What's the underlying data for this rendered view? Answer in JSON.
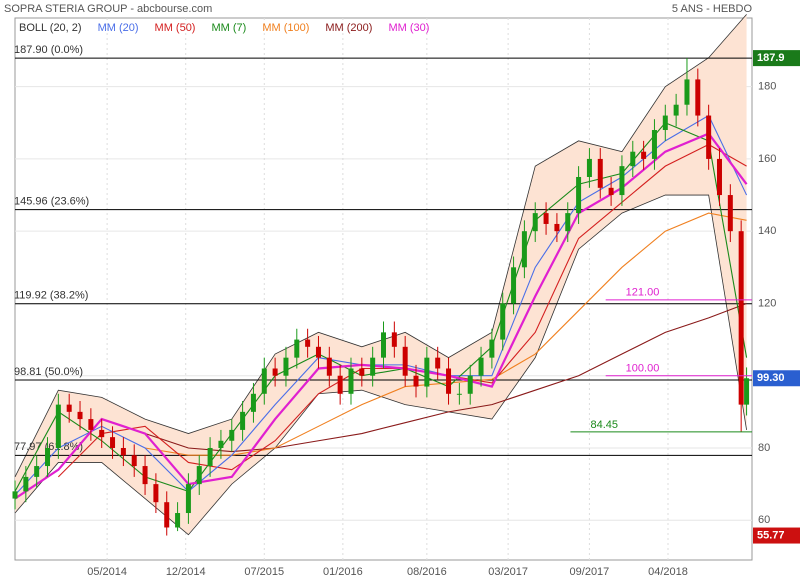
{
  "chart_data": {
    "type": "candlestick",
    "title": "SOPRA STERIA GROUP - abcbourse.com",
    "period": "5 ANS - HEBDO",
    "legend": [
      {
        "name": "BOLL (20, 2)",
        "color": "#333333"
      },
      {
        "name": "MM (20)",
        "color": "#4a6ee8"
      },
      {
        "name": "MM (50)",
        "color": "#d42020"
      },
      {
        "name": "MM (7)",
        "color": "#1a8a1a"
      },
      {
        "name": "MM (100)",
        "color": "#f08020"
      },
      {
        "name": "MM (200)",
        "color": "#8a1a1a"
      },
      {
        "name": "MM (30)",
        "color": "#e020d0"
      }
    ],
    "xlim": [
      0,
      272
    ],
    "xticks": [
      {
        "value": 34,
        "label": "05/2014"
      },
      {
        "value": 63,
        "label": "12/2014"
      },
      {
        "value": 92,
        "label": "07/2015"
      },
      {
        "value": 121,
        "label": "01/2016"
      },
      {
        "value": 152,
        "label": "08/2016"
      },
      {
        "value": 182,
        "label": "03/2017"
      },
      {
        "value": 212,
        "label": "09/2017"
      },
      {
        "value": 241,
        "label": "04/2018"
      }
    ],
    "ylim": [
      49,
      199
    ],
    "yticks": [
      60,
      80,
      100,
      120,
      140,
      160,
      180
    ],
    "grid": true,
    "candles": {
      "up_color": "#1a9a1a",
      "down_color": "#cc0000",
      "x": [
        0,
        4,
        8,
        12,
        16,
        20,
        24,
        28,
        32,
        36,
        40,
        44,
        48,
        52,
        56,
        60,
        64,
        68,
        72,
        76,
        80,
        84,
        88,
        92,
        96,
        100,
        104,
        108,
        112,
        116,
        120,
        124,
        128,
        132,
        136,
        140,
        144,
        148,
        152,
        156,
        160,
        164,
        168,
        172,
        176,
        180,
        184,
        188,
        192,
        196,
        200,
        204,
        208,
        212,
        216,
        220,
        224,
        228,
        232,
        236,
        240,
        244,
        248,
        252,
        256,
        260,
        264,
        268,
        270
      ],
      "open": [
        66,
        68,
        72,
        75,
        80,
        92,
        90,
        88,
        85,
        83,
        80,
        78,
        75,
        70,
        65,
        58,
        62,
        70,
        75,
        80,
        82,
        85,
        90,
        95,
        102,
        100,
        105,
        110,
        108,
        105,
        100,
        95,
        102,
        100,
        105,
        112,
        108,
        100,
        97,
        105,
        102,
        95,
        95,
        100,
        105,
        110,
        120,
        130,
        140,
        145,
        142,
        140,
        145,
        155,
        160,
        152,
        150,
        158,
        162,
        160,
        168,
        172,
        175,
        182,
        172,
        160,
        150,
        140,
        92
      ],
      "high": [
        71,
        75,
        78,
        83,
        95,
        95,
        93,
        91,
        88,
        86,
        83,
        81,
        78,
        73,
        68,
        65,
        73,
        78,
        83,
        85,
        88,
        93,
        98,
        105,
        105,
        108,
        113,
        113,
        111,
        108,
        103,
        105,
        105,
        108,
        115,
        115,
        111,
        103,
        108,
        108,
        105,
        98,
        103,
        108,
        113,
        123,
        133,
        143,
        148,
        148,
        145,
        148,
        158,
        163,
        163,
        155,
        161,
        165,
        165,
        171,
        175,
        178,
        187.9,
        185,
        175,
        163,
        153,
        143,
        102.3
      ],
      "low": [
        63,
        65,
        69,
        72,
        77,
        87,
        85,
        82,
        80,
        77,
        75,
        72,
        67,
        62,
        55.77,
        57,
        59,
        67,
        72,
        77,
        79,
        82,
        87,
        92,
        97,
        97,
        102,
        105,
        102,
        97,
        92,
        92,
        97,
        97,
        102,
        105,
        97,
        94,
        94,
        99,
        92,
        92,
        92,
        97,
        102,
        107,
        117,
        127,
        137,
        139,
        137,
        137,
        142,
        152,
        149,
        147,
        147,
        155,
        157,
        157,
        165,
        169,
        172,
        169,
        157,
        147,
        137,
        84.45,
        89
      ],
      "close": [
        68,
        72,
        75,
        80,
        92,
        90,
        88,
        85,
        83,
        80,
        78,
        75,
        70,
        65,
        58,
        62,
        70,
        75,
        80,
        82,
        85,
        90,
        95,
        102,
        100,
        105,
        110,
        108,
        105,
        100,
        95,
        102,
        100,
        105,
        112,
        108,
        100,
        97,
        105,
        102,
        95,
        95,
        100,
        105,
        110,
        120,
        130,
        140,
        145,
        142,
        140,
        145,
        155,
        160,
        152,
        150,
        158,
        162,
        160,
        168,
        172,
        175,
        182,
        172,
        160,
        150,
        140,
        92,
        99.3
      ]
    },
    "ma_x": [
      0,
      16,
      32,
      48,
      64,
      80,
      96,
      112,
      128,
      144,
      160,
      176,
      192,
      208,
      224,
      240,
      256,
      270
    ],
    "bollinger": {
      "fill": "#fde3d3",
      "color": "#333333",
      "upper": [
        72,
        96,
        94,
        88,
        84,
        88,
        106,
        112,
        108,
        112,
        105,
        112,
        158,
        165,
        162,
        180,
        188,
        200
      ],
      "lower": [
        62,
        76,
        76,
        66,
        56,
        70,
        80,
        95,
        96,
        92,
        90,
        88,
        105,
        135,
        145,
        150,
        150,
        85
      ]
    },
    "series": [
      {
        "name": "MM (200)",
        "color": "#8a1a1a",
        "values": [
          null,
          null,
          null,
          84,
          80,
          79,
          80,
          82,
          84,
          87,
          90,
          92,
          96,
          100,
          106,
          112,
          116,
          120
        ]
      },
      {
        "name": "MM (100)",
        "color": "#f08020",
        "values": [
          null,
          null,
          null,
          80,
          78,
          78,
          80,
          86,
          92,
          97,
          98,
          99,
          106,
          118,
          130,
          140,
          145,
          143
        ]
      },
      {
        "name": "MM (50)",
        "color": "#d42020",
        "values": [
          null,
          72,
          84,
          86,
          76,
          74,
          82,
          95,
          102,
          102,
          100,
          98,
          112,
          138,
          148,
          158,
          164,
          158
        ]
      },
      {
        "name": "MM (20)",
        "color": "#4a6ee8",
        "values": [
          67,
          80,
          86,
          80,
          68,
          78,
          92,
          105,
          103,
          103,
          100,
          100,
          130,
          148,
          155,
          165,
          172,
          150
        ]
      },
      {
        "name": "MM (7)",
        "color": "#1a8a1a",
        "values": [
          68,
          90,
          82,
          72,
          68,
          84,
          100,
          106,
          100,
          102,
          97,
          108,
          143,
          153,
          156,
          170,
          165,
          105
        ]
      },
      {
        "name": "MM (30)",
        "color": "#e020d0",
        "values": [
          66,
          74,
          88,
          84,
          70,
          72,
          88,
          102,
          103,
          102,
          100,
          97,
          122,
          145,
          152,
          162,
          167,
          153
        ]
      }
    ],
    "levels": [
      {
        "value": 187.9,
        "label": "187.90 (0.0%)"
      },
      {
        "value": 145.96,
        "label": "145.96 (23.6%)"
      },
      {
        "value": 119.92,
        "label": "119.92 (38.2%)"
      },
      {
        "value": 98.81,
        "label": "98.81 (50.0%)"
      },
      {
        "value": 77.97,
        "label": "77.97 (61.8%)"
      }
    ],
    "annotations": [
      {
        "value": 121,
        "label": "121.00",
        "color": "#e020d0",
        "from": 218
      },
      {
        "value": 100,
        "label": "100.00",
        "color": "#e020d0",
        "from": 218
      },
      {
        "value": 84.45,
        "label": "84.45",
        "color": "#1a8a1a",
        "from": 205
      }
    ],
    "badges": [
      {
        "value": 187.9,
        "label": "187.9",
        "color": "#1a7a1a"
      },
      {
        "value": 99.3,
        "label": "99.30",
        "color": "#2a5fd0"
      },
      {
        "value": 55.77,
        "label": "55.77",
        "color": "#cc1010"
      }
    ]
  }
}
